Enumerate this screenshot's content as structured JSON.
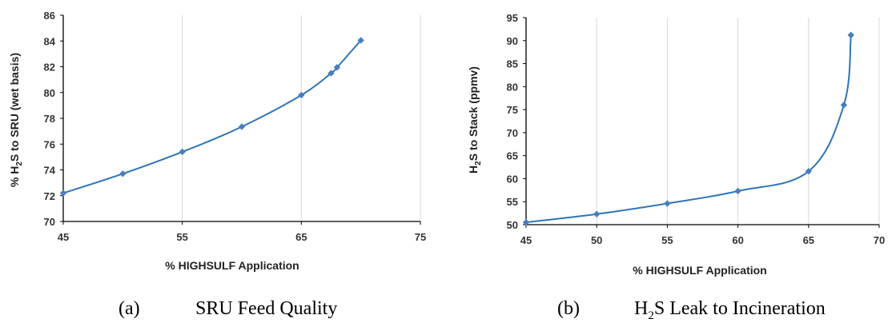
{
  "chart_data": [
    {
      "type": "line",
      "x_axis_label": "% HIGHSULF Application",
      "y_axis_label": {
        "pre": "% H",
        "sub": "2",
        "post": "S to SRU (wet basis)"
      },
      "xlim": [
        45,
        75
      ],
      "ylim": [
        70,
        86
      ],
      "x_ticks": [
        "45",
        "55",
        "65",
        "75"
      ],
      "y_ticks": [
        "70",
        "72",
        "74",
        "76",
        "78",
        "80",
        "82",
        "84",
        "86"
      ],
      "grid": "vertical",
      "x": [
        45,
        50,
        55,
        60,
        65,
        67.5,
        68,
        70
      ],
      "y": [
        72.2,
        73.7,
        75.4,
        77.35,
        79.8,
        81.5,
        81.95,
        84.05
      ],
      "caption": {
        "label": "(a)",
        "text": "SRU Feed Quality"
      }
    },
    {
      "type": "line",
      "x_axis_label": "% HIGHSULF Application",
      "y_axis_label": {
        "pre": "H",
        "sub": "2",
        "post": "S to Stack (ppmv)"
      },
      "xlim": [
        45,
        70
      ],
      "ylim": [
        50,
        95
      ],
      "x_ticks": [
        "45",
        "50",
        "55",
        "60",
        "65",
        "70"
      ],
      "y_ticks": [
        "50",
        "55",
        "60",
        "65",
        "70",
        "75",
        "80",
        "85",
        "90",
        "95"
      ],
      "grid": "vertical",
      "x": [
        45,
        50,
        55,
        60,
        65,
        67.5,
        68
      ],
      "y": [
        50.5,
        52.3,
        54.6,
        57.3,
        61.6,
        76,
        91.2
      ],
      "caption": {
        "label": "(b)",
        "pre": "H",
        "sub": "2",
        "post": "S Leak to Incineration"
      }
    }
  ],
  "style": {
    "line_color": "#2e75b6",
    "marker_color": "#4a7ebb",
    "axis_color": "#000000",
    "grid_color": "#d9d9d9"
  }
}
